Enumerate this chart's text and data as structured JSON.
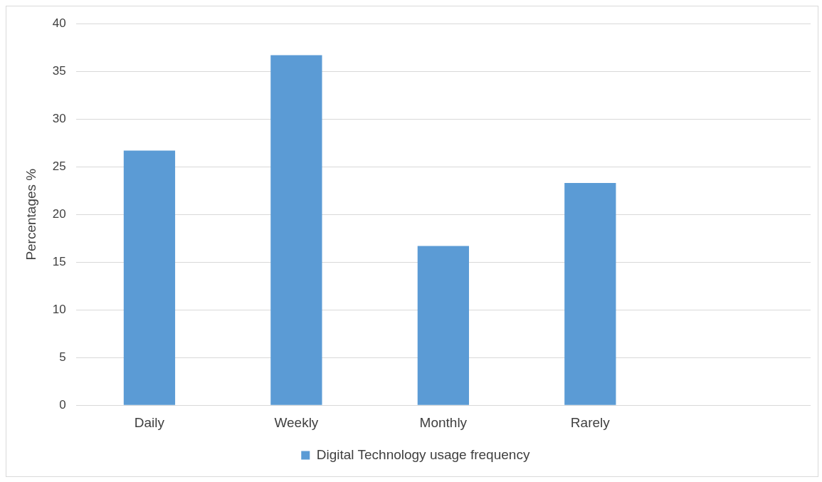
{
  "chart_data": {
    "type": "bar",
    "ylabel": "Percentages %",
    "categories": [
      "Daily",
      "Weekly",
      "Monthly",
      "Rarely",
      null
    ],
    "series": [
      {
        "name": "Digital Technology usage frequency",
        "color": "#5b9bd5",
        "values": [
          26.7,
          36.7,
          16.7,
          23.3,
          null
        ]
      }
    ],
    "ylim": [
      0,
      40
    ],
    "yticks": [
      0,
      5,
      10,
      15,
      20,
      25,
      30,
      35,
      40
    ],
    "grid": "y",
    "legend": "bottom"
  }
}
